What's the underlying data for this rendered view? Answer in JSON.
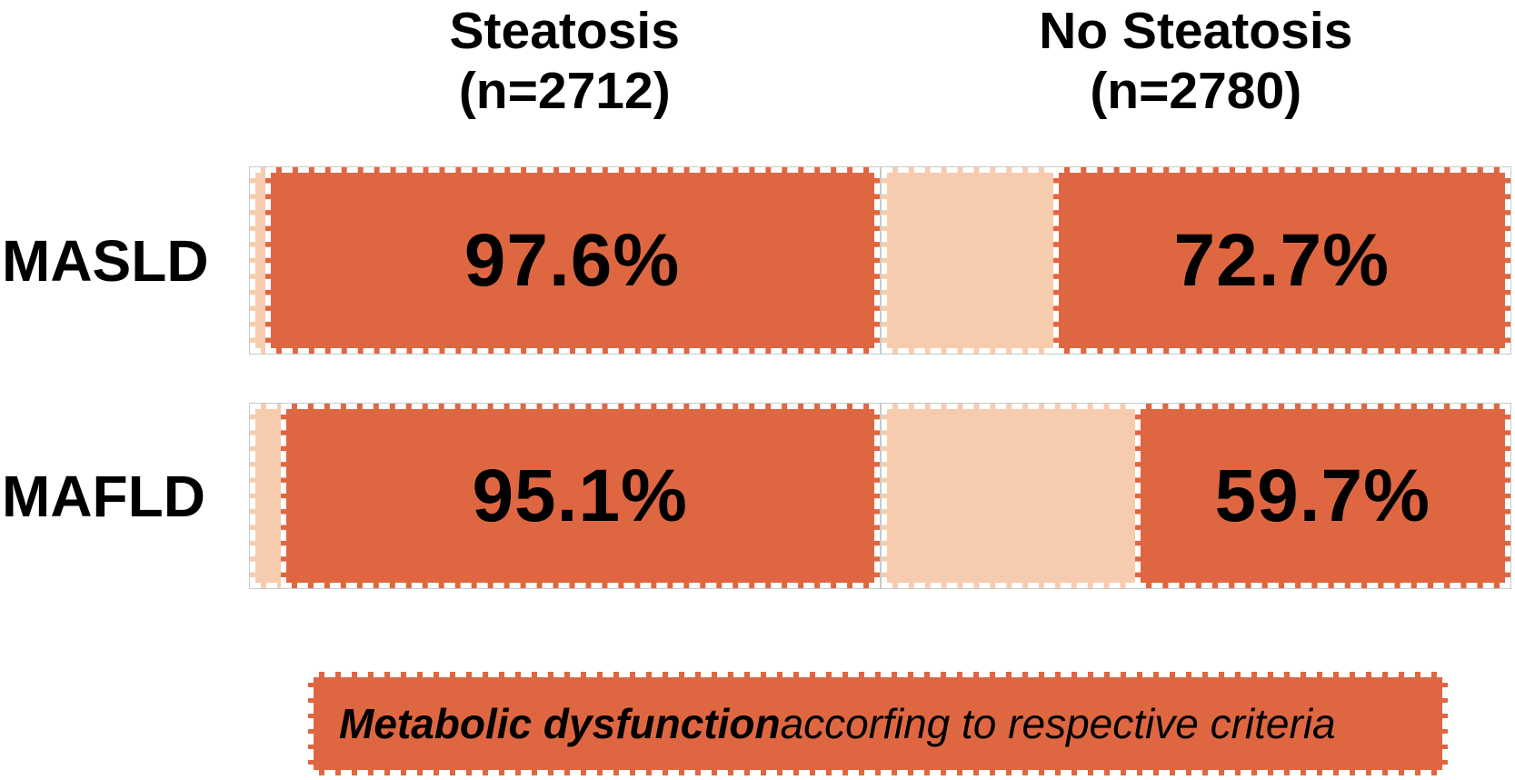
{
  "headers": {
    "steatosis": {
      "title": "Steatosis",
      "n": "(n=2712)"
    },
    "no_steatosis": {
      "title": "No Steatosis",
      "n": "(n=2780)"
    }
  },
  "rows": [
    {
      "label": "MASLD",
      "steatosis_pct": "97.6%",
      "no_steatosis_pct": "72.7%"
    },
    {
      "label": "MAFLD",
      "steatosis_pct": "95.1%",
      "no_steatosis_pct": "59.7%"
    }
  ],
  "legend": {
    "bold_text": "Metabolic dysfunction",
    "regular_text": " accorfing to respective criteria"
  },
  "colors": {
    "dysfunction_fill": "#de6742",
    "remainder_fill": "#f7ccae",
    "dash_border": "#ffffff",
    "outline": "#c3cdca",
    "text": "#000000"
  },
  "chart_data": {
    "type": "bar",
    "subtype": "100%-stacked-horizontal",
    "title": "",
    "categories": [
      "Steatosis (n=2712)",
      "No Steatosis (n=2780)"
    ],
    "group_sizes": [
      2712,
      2780
    ],
    "series": [
      {
        "name": "MASLD",
        "values": [
          97.6,
          72.7
        ]
      },
      {
        "name": "MAFLD",
        "values": [
          95.1,
          59.7
        ]
      }
    ],
    "units": "%",
    "xlim": [
      0,
      100
    ],
    "legend": "Metabolic dysfunction accorfing to respective criteria",
    "legend_position": "bottom",
    "notes": "Orange dashed-outlined segment = share with metabolic dysfunction per respective criteria; light peach segment = remainder without metabolic dysfunction. Orange segments are right-aligned within each 100% box."
  }
}
